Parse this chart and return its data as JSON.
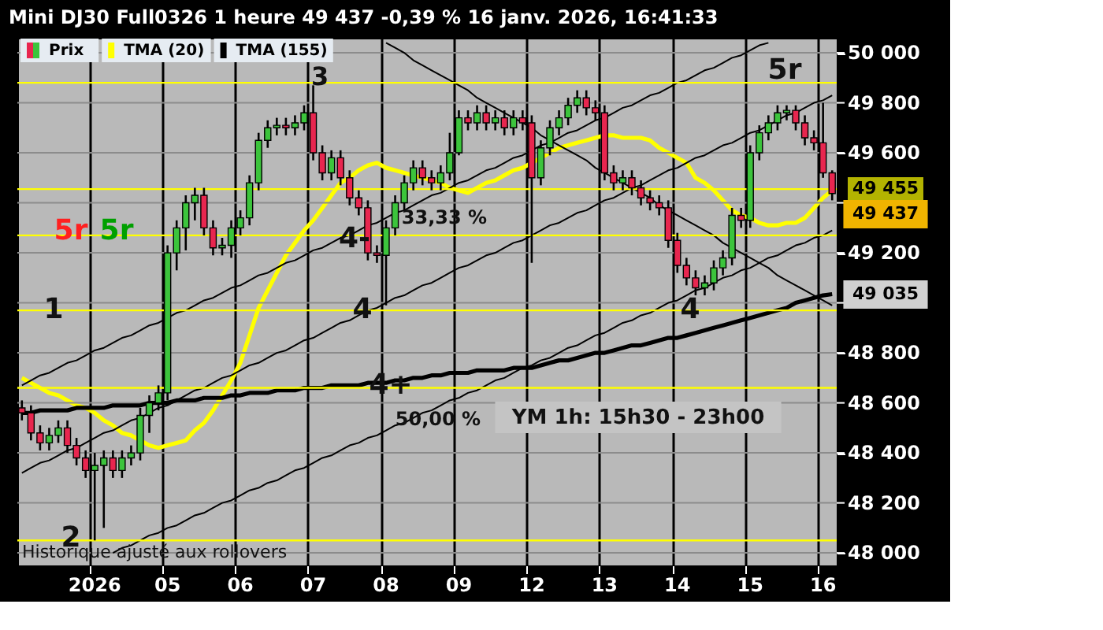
{
  "chart_data": {
    "type": "candlestick",
    "title": "Mini DJ30 Full0326 1 heure 49 437 -0,39 % 16 janv. 2026, 16:41:33",
    "categories": [
      null,
      null,
      null,
      null,
      null,
      null,
      null,
      null,
      "2026",
      null,
      null,
      null,
      null,
      null,
      null,
      null,
      "05",
      null,
      null,
      null,
      null,
      null,
      null,
      null,
      "06",
      null,
      null,
      null,
      null,
      null,
      null,
      null,
      "07",
      null,
      null,
      null,
      null,
      null,
      null,
      null,
      "08",
      null,
      null,
      null,
      null,
      null,
      null,
      null,
      "09",
      null,
      null,
      null,
      null,
      null,
      null,
      null,
      "12",
      null,
      null,
      null,
      null,
      null,
      null,
      null,
      "13",
      null,
      null,
      null,
      null,
      null,
      null,
      null,
      "14",
      null,
      null,
      null,
      null,
      null,
      null,
      null,
      "15",
      null,
      null,
      null,
      null,
      null,
      null,
      null,
      "16",
      null
    ],
    "ylim": [
      47950,
      50060
    ],
    "yticks": [
      {
        "value": 48000,
        "label": "48 000"
      },
      {
        "value": 48200,
        "label": "48 200"
      },
      {
        "value": 48400,
        "label": "48 400"
      },
      {
        "value": 48600,
        "label": "48 600"
      },
      {
        "value": 48800,
        "label": "48 800"
      },
      {
        "value": 49000,
        "label": null
      },
      {
        "value": 49200,
        "label": "49 200"
      },
      {
        "value": 49400,
        "label": null
      },
      {
        "value": 49600,
        "label": "49 600"
      },
      {
        "value": 49800,
        "label": "49 800"
      },
      {
        "value": 50000,
        "label": "50 000"
      }
    ],
    "grid": true,
    "legend": "top left",
    "series": [
      {
        "name": "Prix",
        "ohlc": [
          [
            48580,
            48610,
            48530,
            48560
          ],
          [
            48560,
            48590,
            48450,
            48480
          ],
          [
            48480,
            48510,
            48410,
            48440
          ],
          [
            48440,
            48500,
            48410,
            48470
          ],
          [
            48470,
            48530,
            48440,
            48500
          ],
          [
            48500,
            48530,
            48400,
            48430
          ],
          [
            48430,
            48460,
            48350,
            48380
          ],
          [
            48380,
            48410,
            48300,
            48330
          ],
          [
            48330,
            48400,
            48050,
            48350
          ],
          [
            48350,
            48410,
            48100,
            48380
          ],
          [
            48380,
            48410,
            48300,
            48330
          ],
          [
            48330,
            48410,
            48300,
            48380
          ],
          [
            48380,
            48430,
            48350,
            48400
          ],
          [
            48400,
            48580,
            48370,
            48550
          ],
          [
            48550,
            48630,
            48480,
            48600
          ],
          [
            48600,
            48670,
            48570,
            48640
          ],
          [
            48640,
            49230,
            48610,
            49200
          ],
          [
            49200,
            49330,
            49130,
            49300
          ],
          [
            49300,
            49430,
            49210,
            49400
          ],
          [
            49400,
            49460,
            49330,
            49430
          ],
          [
            49430,
            49460,
            49270,
            49300
          ],
          [
            49300,
            49330,
            49190,
            49220
          ],
          [
            49220,
            49260,
            49190,
            49230
          ],
          [
            49230,
            49330,
            49180,
            49300
          ],
          [
            49300,
            49370,
            49270,
            49340
          ],
          [
            49340,
            49510,
            49310,
            49480
          ],
          [
            49480,
            49680,
            49450,
            49650
          ],
          [
            49650,
            49730,
            49620,
            49700
          ],
          [
            49700,
            49740,
            49670,
            49710
          ],
          [
            49710,
            49740,
            49670,
            49700
          ],
          [
            49700,
            49750,
            49670,
            49720
          ],
          [
            49720,
            49790,
            49690,
            49760
          ],
          [
            49760,
            49870,
            49570,
            49600
          ],
          [
            49600,
            49630,
            49490,
            49520
          ],
          [
            49520,
            49610,
            49490,
            49580
          ],
          [
            49580,
            49610,
            49470,
            49500
          ],
          [
            49500,
            49530,
            49390,
            49420
          ],
          [
            49420,
            49450,
            49350,
            49380
          ],
          [
            49380,
            49410,
            49170,
            49200
          ],
          [
            49200,
            49230,
            49160,
            49190
          ],
          [
            49190,
            49330,
            48990,
            49300
          ],
          [
            49300,
            49430,
            49270,
            49400
          ],
          [
            49400,
            49510,
            49370,
            49480
          ],
          [
            49480,
            49570,
            49450,
            49540
          ],
          [
            49540,
            49570,
            49470,
            49500
          ],
          [
            49500,
            49530,
            49450,
            49480
          ],
          [
            49480,
            49550,
            49450,
            49520
          ],
          [
            49520,
            49680,
            49490,
            49600
          ],
          [
            49600,
            49770,
            49590,
            49740
          ],
          [
            49740,
            49770,
            49690,
            49720
          ],
          [
            49720,
            49790,
            49690,
            49760
          ],
          [
            49760,
            49790,
            49690,
            49720
          ],
          [
            49720,
            49770,
            49690,
            49740
          ],
          [
            49740,
            49770,
            49670,
            49700
          ],
          [
            49700,
            49770,
            49670,
            49740
          ],
          [
            49740,
            49770,
            49690,
            49720
          ],
          [
            49720,
            49750,
            49160,
            49500
          ],
          [
            49500,
            49650,
            49470,
            49620
          ],
          [
            49620,
            49730,
            49590,
            49700
          ],
          [
            49700,
            49770,
            49670,
            49740
          ],
          [
            49740,
            49820,
            49710,
            49790
          ],
          [
            49790,
            49850,
            49760,
            49820
          ],
          [
            49820,
            49850,
            49750,
            49780
          ],
          [
            49780,
            49810,
            49730,
            49760
          ],
          [
            49760,
            49790,
            49490,
            49520
          ],
          [
            49520,
            49550,
            49450,
            49480
          ],
          [
            49480,
            49530,
            49450,
            49500
          ],
          [
            49500,
            49530,
            49430,
            49460
          ],
          [
            49460,
            49490,
            49390,
            49420
          ],
          [
            49420,
            49450,
            49370,
            49400
          ],
          [
            49400,
            49430,
            49350,
            49380
          ],
          [
            49380,
            49410,
            49220,
            49250
          ],
          [
            49250,
            49280,
            49120,
            49150
          ],
          [
            49150,
            49180,
            49070,
            49100
          ],
          [
            49100,
            49130,
            49030,
            49060
          ],
          [
            49060,
            49110,
            49030,
            49080
          ],
          [
            49080,
            49170,
            49050,
            49140
          ],
          [
            49140,
            49210,
            49110,
            49180
          ],
          [
            49180,
            49380,
            49150,
            49350
          ],
          [
            49350,
            49380,
            49300,
            49330
          ],
          [
            49330,
            49630,
            49300,
            49600
          ],
          [
            49600,
            49710,
            49570,
            49680
          ],
          [
            49680,
            49750,
            49650,
            49720
          ],
          [
            49720,
            49790,
            49690,
            49760
          ],
          [
            49760,
            49790,
            49730,
            49770
          ],
          [
            49770,
            49790,
            49690,
            49720
          ],
          [
            49720,
            49750,
            49630,
            49660
          ],
          [
            49660,
            49690,
            49610,
            49640
          ],
          [
            49640,
            49800,
            49500,
            49520
          ],
          [
            49520,
            49530,
            49410,
            49437
          ]
        ],
        "colors": [
          "#e8264f",
          "#e8264f",
          "#e8264f",
          "#3cc43c",
          "#3cc43c",
          "#e8264f",
          "#e8264f",
          "#e8264f",
          "#3cc43c",
          "#3cc43c",
          "#e8264f",
          "#3cc43c",
          "#3cc43c",
          "#3cc43c",
          "#3cc43c",
          "#3cc43c",
          "#3cc43c",
          "#3cc43c",
          "#3cc43c",
          "#3cc43c",
          "#e8264f",
          "#e8264f",
          "#3cc43c",
          "#3cc43c",
          "#3cc43c",
          "#3cc43c",
          "#3cc43c",
          "#3cc43c",
          "#3cc43c",
          "#e8264f",
          "#3cc43c",
          "#3cc43c",
          "#e8264f",
          "#e8264f",
          "#3cc43c",
          "#e8264f",
          "#e8264f",
          "#e8264f",
          "#e8264f",
          "#e8264f",
          "#3cc43c",
          "#3cc43c",
          "#3cc43c",
          "#3cc43c",
          "#e8264f",
          "#e8264f",
          "#3cc43c",
          "#3cc43c",
          "#3cc43c",
          "#e8264f",
          "#3cc43c",
          "#e8264f",
          "#3cc43c",
          "#e8264f",
          "#3cc43c",
          "#e8264f",
          "#e8264f",
          "#3cc43c",
          "#3cc43c",
          "#3cc43c",
          "#3cc43c",
          "#3cc43c",
          "#e8264f",
          "#e8264f",
          "#e8264f",
          "#e8264f",
          "#3cc43c",
          "#e8264f",
          "#e8264f",
          "#e8264f",
          "#e8264f",
          "#e8264f",
          "#e8264f",
          "#e8264f",
          "#e8264f",
          "#3cc43c",
          "#3cc43c",
          "#3cc43c",
          "#3cc43c",
          "#e8264f",
          "#3cc43c",
          "#3cc43c",
          "#3cc43c",
          "#3cc43c",
          "#3cc43c",
          "#e8264f",
          "#e8264f",
          "#e8264f",
          "#e8264f",
          "#e8264f"
        ]
      },
      {
        "name": "TMA (20)",
        "type": "line",
        "color": "#ffff00",
        "values": [
          48700,
          48680,
          48660,
          48640,
          48630,
          48610,
          48590,
          48580,
          48560,
          48530,
          48510,
          48480,
          48470,
          48450,
          48430,
          48420,
          48430,
          48440,
          48450,
          48490,
          48520,
          48570,
          48630,
          48690,
          48760,
          48870,
          48980,
          49050,
          49120,
          49190,
          49240,
          49290,
          49330,
          49380,
          49430,
          49480,
          49500,
          49530,
          49550,
          49560,
          49540,
          49530,
          49520,
          49510,
          49500,
          49490,
          49480,
          49460,
          49450,
          49440,
          49460,
          49480,
          49490,
          49510,
          49530,
          49540,
          49560,
          49580,
          49600,
          49620,
          49630,
          49640,
          49650,
          49660,
          49670,
          49670,
          49660,
          49660,
          49660,
          49650,
          49620,
          49600,
          49580,
          49560,
          49500,
          49480,
          49450,
          49410,
          49370,
          49350,
          49340,
          49320,
          49310,
          49310,
          49320,
          49320,
          49340,
          49380,
          49420,
          49450
        ]
      },
      {
        "name": "TMA (155)",
        "type": "line",
        "color": "#000000",
        "values": [
          48560,
          48560,
          48570,
          48570,
          48570,
          48570,
          48580,
          48580,
          48580,
          48580,
          48590,
          48590,
          48590,
          48590,
          48600,
          48600,
          48600,
          48610,
          48610,
          48610,
          48620,
          48620,
          48620,
          48630,
          48630,
          48640,
          48640,
          48640,
          48650,
          48650,
          48650,
          48660,
          48660,
          48660,
          48670,
          48670,
          48670,
          48670,
          48680,
          48680,
          48680,
          48690,
          48690,
          48700,
          48700,
          48710,
          48710,
          48720,
          48720,
          48720,
          48730,
          48730,
          48730,
          48730,
          48740,
          48740,
          48740,
          48750,
          48760,
          48770,
          48770,
          48780,
          48790,
          48800,
          48800,
          48810,
          48820,
          48830,
          48830,
          48840,
          48850,
          48860,
          48860,
          48870,
          48880,
          48890,
          48900,
          48910,
          48920,
          48930,
          48940,
          48950,
          48960,
          48970,
          48980,
          49000,
          49010,
          49020,
          49030,
          49035
        ]
      },
      {
        "type": "line",
        "color": "#000000",
        "values": [
          null,
          null,
          null,
          null,
          null,
          null,
          null,
          null,
          null,
          null,
          null,
          null,
          null,
          null,
          null,
          null,
          null,
          null,
          null,
          null,
          null,
          null,
          null,
          null,
          null,
          null,
          null,
          null,
          null,
          null,
          null,
          null,
          null,
          null,
          null,
          null,
          null,
          null,
          null,
          null,
          50040,
          50020,
          50000,
          49970,
          49950,
          49930,
          49910,
          49890,
          49870,
          49850,
          49820,
          49800,
          49780,
          49760,
          49740,
          49720,
          49700,
          49670,
          49650,
          49630,
          49610,
          49590,
          49570,
          49540,
          49520,
          49500,
          49480,
          49460,
          49440,
          49420,
          49390,
          49370,
          49350,
          49330,
          49310,
          49290,
          49270,
          49240,
          49220,
          49200,
          49180,
          49160,
          49140,
          49110,
          49090,
          49070,
          49050,
          49030,
          49010,
          48990
        ]
      },
      {
        "type": "line",
        "color": "#000000",
        "values": [
          48670,
          48690,
          48710,
          48720,
          48740,
          48760,
          48770,
          48790,
          48810,
          48820,
          48840,
          48860,
          48870,
          48890,
          48910,
          48920,
          48940,
          48960,
          48970,
          48990,
          49010,
          49020,
          49040,
          49060,
          49070,
          49090,
          49110,
          49120,
          49140,
          49160,
          49170,
          49190,
          49210,
          49220,
          49240,
          49260,
          49270,
          49290,
          49310,
          49320,
          49340,
          49360,
          49370,
          49390,
          49410,
          49430,
          49440,
          49460,
          49480,
          49490,
          49510,
          49530,
          49540,
          49560,
          49580,
          49590,
          49610,
          49630,
          49640,
          49660,
          49680,
          49690,
          49710,
          49730,
          49740,
          49760,
          49780,
          49790,
          49810,
          49830,
          49840,
          49860,
          49880,
          49890,
          49910,
          49930,
          49940,
          49960,
          49980,
          49990,
          50010,
          50030,
          50040,
          null,
          null,
          null,
          null,
          null,
          null,
          null
        ]
      },
      {
        "type": "line",
        "color": "#000000",
        "values": [
          48320,
          48340,
          48360,
          48370,
          48390,
          48410,
          48420,
          48440,
          48460,
          48480,
          48490,
          48510,
          48530,
          48540,
          48560,
          48580,
          48590,
          48610,
          48630,
          48650,
          48660,
          48680,
          48700,
          48710,
          48730,
          48750,
          48760,
          48780,
          48800,
          48810,
          48830,
          48850,
          48860,
          48880,
          48900,
          48920,
          48930,
          48950,
          48970,
          48980,
          49000,
          49020,
          49030,
          49050,
          49070,
          49080,
          49100,
          49120,
          49140,
          49150,
          49170,
          49190,
          49200,
          49220,
          49240,
          49250,
          49270,
          49290,
          49310,
          49320,
          49340,
          49360,
          49370,
          49390,
          49410,
          49420,
          49440,
          49460,
          49470,
          49490,
          49510,
          49530,
          49540,
          49560,
          49580,
          49590,
          49610,
          49630,
          49640,
          49660,
          49680,
          49690,
          49710,
          49730,
          49750,
          49760,
          49780,
          49800,
          49810,
          49830
        ]
      },
      {
        "type": "line",
        "color": "#000000",
        "values": [
          null,
          null,
          null,
          null,
          null,
          null,
          null,
          null,
          null,
          null,
          48000,
          48020,
          48030,
          48050,
          48070,
          48080,
          48100,
          48110,
          48130,
          48150,
          48160,
          48180,
          48200,
          48210,
          48230,
          48250,
          48260,
          48280,
          48290,
          48310,
          48330,
          48340,
          48360,
          48380,
          48390,
          48410,
          48430,
          48440,
          48460,
          48470,
          48490,
          48510,
          48520,
          48540,
          48560,
          48570,
          48590,
          48610,
          48620,
          48640,
          48650,
          48670,
          48690,
          48700,
          48720,
          48740,
          48750,
          48770,
          48780,
          48800,
          48820,
          48830,
          48850,
          48870,
          48880,
          48900,
          48920,
          48930,
          48950,
          48960,
          48980,
          49000,
          49010,
          49030,
          49050,
          49060,
          49080,
          49100,
          49110,
          49130,
          49140,
          49160,
          49180,
          49190,
          49210,
          49230,
          49240,
          49260,
          49270,
          49290
        ]
      }
    ],
    "ref_lines": [
      {
        "axis": "y",
        "value": 49880,
        "color": "#ffff00"
      },
      {
        "axis": "y",
        "value": 49455,
        "label": "49 455",
        "color": "#ffff00"
      },
      {
        "axis": "y",
        "value": 49270,
        "color": "#ffff00"
      },
      {
        "axis": "y",
        "value": 48970,
        "color": "#ffff00"
      },
      {
        "axis": "y",
        "value": 48660,
        "color": "#ffff00"
      },
      {
        "axis": "y",
        "value": 48050,
        "color": "#ffff00"
      }
    ],
    "annotations": [
      "1",
      "2",
      "3",
      "4-",
      "4",
      "4+",
      "4",
      "5r",
      "5r",
      "5r",
      "33,33 %",
      "50,00 %",
      "YM 1h: 15h30 - 23h00",
      "49 437",
      "49 035",
      "Historique ajusté aux rollovers"
    ]
  }
}
